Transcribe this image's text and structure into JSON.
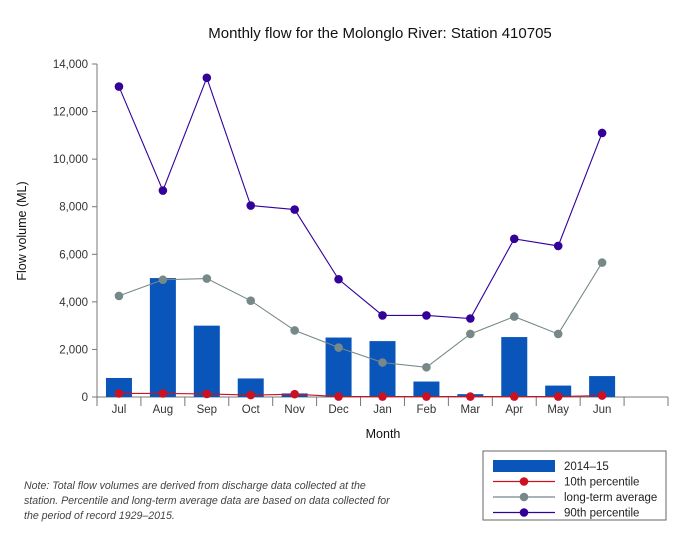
{
  "chart_data": {
    "type": "bar+line",
    "title": "Monthly flow for the Molonglo River: Station 410705",
    "xlabel": "Month",
    "ylabel": "Flow volume (ML)",
    "ylim": [
      0,
      14000
    ],
    "yticks": [
      0,
      2000,
      4000,
      6000,
      8000,
      10000,
      12000,
      14000
    ],
    "ytick_labels": [
      "0",
      "2,000",
      "4,000",
      "6,000",
      "8,000",
      "10,000",
      "12,000",
      "14,000"
    ],
    "categories": [
      "Jul",
      "Aug",
      "Sep",
      "Oct",
      "Nov",
      "Dec",
      "Jan",
      "Feb",
      "Mar",
      "Apr",
      "May",
      "Jun"
    ],
    "legend_position": "bottom-right",
    "series": [
      {
        "name": "2014–15",
        "type": "bar",
        "color": "#0a55b9",
        "values": [
          800,
          5000,
          3000,
          780,
          150,
          2500,
          2350,
          650,
          120,
          2520,
          480,
          880
        ]
      },
      {
        "name": "10th percentile",
        "type": "line",
        "color": "#cc1122",
        "values": [
          150,
          150,
          130,
          80,
          120,
          20,
          20,
          20,
          20,
          20,
          20,
          60
        ]
      },
      {
        "name": "long-term average",
        "type": "line",
        "color": "#778888",
        "values": [
          4250,
          4930,
          4980,
          4050,
          2800,
          2080,
          1450,
          1250,
          2650,
          3380,
          2650,
          5650
        ]
      },
      {
        "name": "90th percentile",
        "type": "line",
        "color": "#330099",
        "values": [
          13050,
          8680,
          13420,
          8050,
          7880,
          4950,
          3430,
          3430,
          3300,
          6650,
          6350,
          11100
        ]
      }
    ]
  },
  "note": "Note: Total flow volumes are derived from discharge data collected at the station. Percentile and long-term average data are based on data collected for the period of record 1929–2015."
}
